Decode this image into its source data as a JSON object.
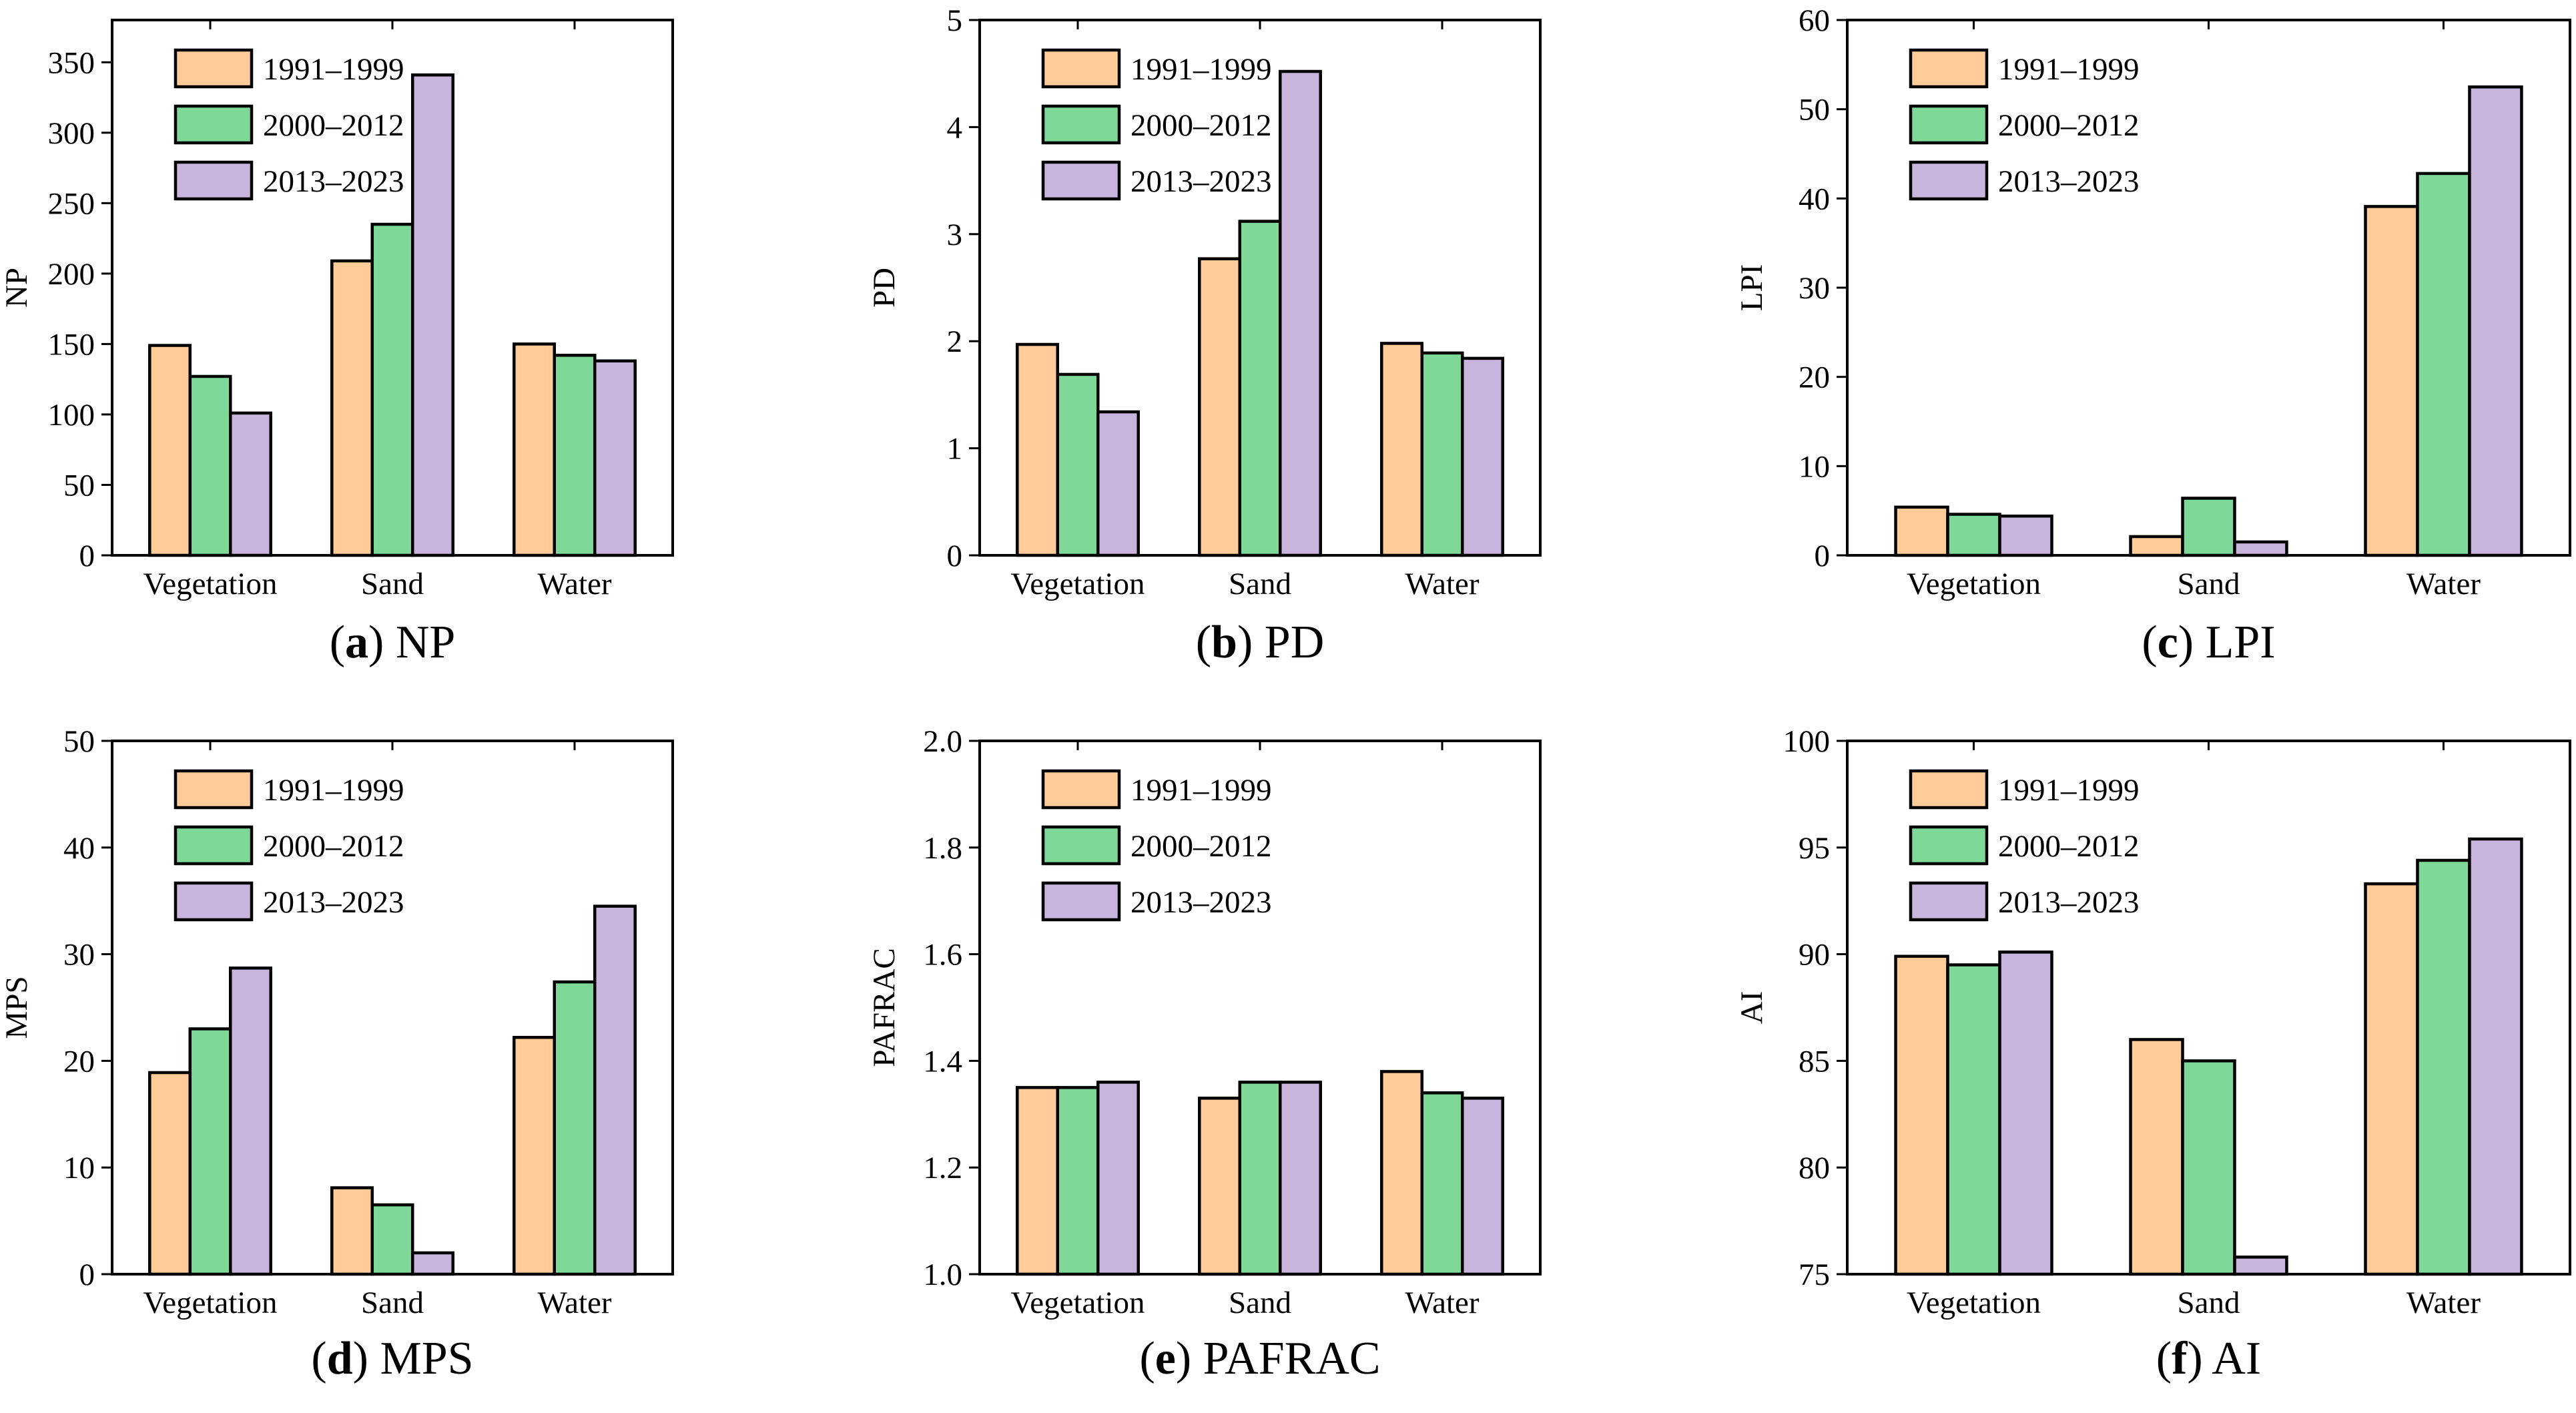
{
  "series_names": [
    "1991–1999",
    "2000–2012",
    "2013–2023"
  ],
  "series_colors": [
    "#FFCC99",
    "#7ED999",
    "#C8B4DC"
  ],
  "chart_data": [
    {
      "type": "bar",
      "id": "a",
      "panel_letter": "(a)",
      "panel_title": "NP",
      "ylabel": "NP",
      "categories": [
        "Vegetation",
        "Sand",
        "Water"
      ],
      "ylim": [
        0,
        380
      ],
      "yticks": [
        0,
        50,
        100,
        150,
        200,
        250,
        300,
        350
      ],
      "ytick_labels": [
        "0",
        "50",
        "100",
        "150",
        "200",
        "250",
        "300",
        "350"
      ],
      "series": [
        {
          "name": "1991–1999",
          "values": [
            149,
            209,
            150
          ]
        },
        {
          "name": "2000–2012",
          "values": [
            127,
            235,
            142
          ]
        },
        {
          "name": "2013–2023",
          "values": [
            101,
            341,
            138
          ]
        }
      ],
      "legend": "top-left"
    },
    {
      "type": "bar",
      "id": "b",
      "panel_letter": "(b)",
      "panel_title": "PD",
      "ylabel": "PD",
      "categories": [
        "Vegetation",
        "Sand",
        "Water"
      ],
      "ylim": [
        0,
        5
      ],
      "yticks": [
        0,
        1,
        2,
        3,
        4,
        5
      ],
      "ytick_labels": [
        "0",
        "1",
        "2",
        "3",
        "4",
        "5"
      ],
      "series": [
        {
          "name": "1991–1999",
          "values": [
            1.97,
            2.77,
            1.98
          ]
        },
        {
          "name": "2000–2012",
          "values": [
            1.69,
            3.12,
            1.89
          ]
        },
        {
          "name": "2013–2023",
          "values": [
            1.34,
            4.52,
            1.84
          ]
        }
      ],
      "legend": "top-left"
    },
    {
      "type": "bar",
      "id": "c",
      "panel_letter": "(c)",
      "panel_title": "LPI",
      "ylabel": "LPI",
      "categories": [
        "Vegetation",
        "Sand",
        "Water"
      ],
      "ylim": [
        0,
        60
      ],
      "yticks": [
        0,
        10,
        20,
        30,
        40,
        50,
        60
      ],
      "ytick_labels": [
        "0",
        "10",
        "20",
        "30",
        "40",
        "50",
        "60"
      ],
      "series": [
        {
          "name": "1991–1999",
          "values": [
            5.4,
            2.1,
            39.1
          ]
        },
        {
          "name": "2000–2012",
          "values": [
            4.6,
            6.4,
            42.8
          ]
        },
        {
          "name": "2013–2023",
          "values": [
            4.4,
            1.5,
            52.5
          ]
        }
      ],
      "legend": "top-left"
    },
    {
      "type": "bar",
      "id": "d",
      "panel_letter": "(d)",
      "panel_title": "MPS",
      "ylabel": "MPS",
      "categories": [
        "Vegetation",
        "Sand",
        "Water"
      ],
      "ylim": [
        0,
        50
      ],
      "yticks": [
        0,
        10,
        20,
        30,
        40,
        50
      ],
      "ytick_labels": [
        "0",
        "10",
        "20",
        "30",
        "40",
        "50"
      ],
      "series": [
        {
          "name": "1991–1999",
          "values": [
            18.9,
            8.1,
            22.2
          ]
        },
        {
          "name": "2000–2012",
          "values": [
            23.0,
            6.5,
            27.4
          ]
        },
        {
          "name": "2013–2023",
          "values": [
            28.7,
            2.0,
            34.5
          ]
        }
      ],
      "legend": "top-left"
    },
    {
      "type": "bar",
      "id": "e",
      "panel_letter": "(e)",
      "panel_title": "PAFRAC",
      "ylabel": "PAFRAC",
      "categories": [
        "Vegetation",
        "Sand",
        "Water"
      ],
      "ylim": [
        1.0,
        2.0
      ],
      "yticks": [
        1.0,
        1.2,
        1.4,
        1.6,
        1.8,
        2.0
      ],
      "ytick_labels": [
        "1.0",
        "1.2",
        "1.4",
        "1.6",
        "1.8",
        "2.0"
      ],
      "series": [
        {
          "name": "1991–1999",
          "values": [
            1.35,
            1.33,
            1.38
          ]
        },
        {
          "name": "2000–2012",
          "values": [
            1.35,
            1.36,
            1.34
          ]
        },
        {
          "name": "2013–2023",
          "values": [
            1.36,
            1.36,
            1.33
          ]
        }
      ],
      "legend": "top-left"
    },
    {
      "type": "bar",
      "id": "f",
      "panel_letter": "(f)",
      "panel_title": "AI",
      "ylabel": "AI",
      "categories": [
        "Vegetation",
        "Sand",
        "Water"
      ],
      "ylim": [
        75,
        100
      ],
      "yticks": [
        75,
        80,
        85,
        90,
        95,
        100
      ],
      "ytick_labels": [
        "75",
        "80",
        "85",
        "90",
        "95",
        "100"
      ],
      "series": [
        {
          "name": "1991–1999",
          "values": [
            89.9,
            86.0,
            93.3
          ]
        },
        {
          "name": "2000–2012",
          "values": [
            89.5,
            85.0,
            94.4
          ]
        },
        {
          "name": "2013–2023",
          "values": [
            90.1,
            75.8,
            95.4
          ]
        }
      ],
      "legend": "top-left"
    }
  ]
}
